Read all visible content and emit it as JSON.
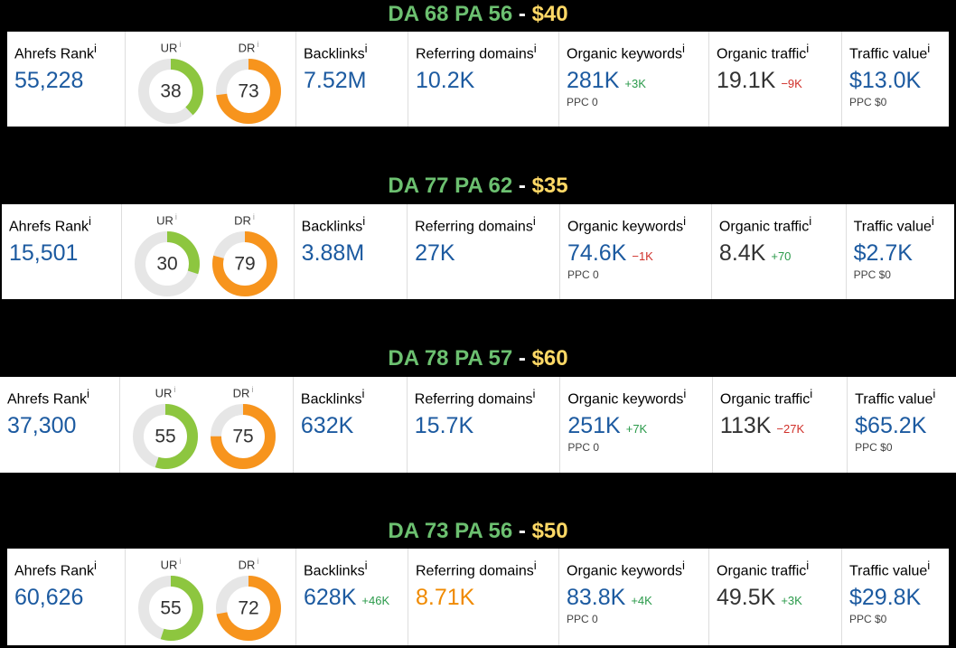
{
  "labels": {
    "ahrefs_rank": "Ahrefs Rank",
    "ur": "UR",
    "dr": "DR",
    "backlinks": "Backlinks",
    "referring_domains": "Referring domains",
    "organic_keywords": "Organic keywords",
    "organic_traffic": "Organic traffic",
    "traffic_value": "Traffic value",
    "info": "i"
  },
  "colors": {
    "value": "#1c5aa0",
    "traffic": "#333333",
    "highlight": "#f08a00",
    "up": "#2a9a4a",
    "down": "#d0302a",
    "ur": "#8dc63f",
    "dr": "#f7941d",
    "track": "#e6e6e6",
    "da_pa": "#6cc070",
    "price": "#ffd966",
    "separator": "#ffffff"
  },
  "panels": [
    {
      "heading": {
        "da_pa": "DA 68 PA 56",
        "separator": "-",
        "price": "$40"
      },
      "ahrefs_rank": "55,228",
      "ur": 38,
      "dr": 73,
      "backlinks": {
        "value": "7.52M"
      },
      "referring_domains": {
        "value": "10.2K"
      },
      "organic_keywords": {
        "value": "281K",
        "delta": "+3K",
        "ppc": "PPC 0"
      },
      "organic_traffic": {
        "value": "19.1K",
        "delta": "−9K"
      },
      "traffic_value": {
        "value": "$13.0K",
        "ppc": "PPC $0"
      }
    },
    {
      "heading": {
        "da_pa": "DA 77 PA 62",
        "separator": "-",
        "price": "$35"
      },
      "ahrefs_rank": "15,501",
      "ur": 30,
      "dr": 79,
      "backlinks": {
        "value": "3.88M"
      },
      "referring_domains": {
        "value": "27K"
      },
      "organic_keywords": {
        "value": "74.6K",
        "delta": "−1K",
        "ppc": "PPC 0"
      },
      "organic_traffic": {
        "value": "8.4K",
        "delta": "+70"
      },
      "traffic_value": {
        "value": "$2.7K",
        "ppc": "PPC $0"
      }
    },
    {
      "heading": {
        "da_pa": "DA 78 PA 57",
        "separator": "-",
        "price": "$60"
      },
      "ahrefs_rank": "37,300",
      "ur": 55,
      "dr": 75,
      "backlinks": {
        "value": "632K"
      },
      "referring_domains": {
        "value": "15.7K"
      },
      "organic_keywords": {
        "value": "251K",
        "delta": "+7K",
        "ppc": "PPC 0"
      },
      "organic_traffic": {
        "value": "113K",
        "delta": "−27K"
      },
      "traffic_value": {
        "value": "$65.2K",
        "ppc": "PPC $0"
      }
    },
    {
      "heading": {
        "da_pa": "DA 73 PA 56",
        "separator": "-",
        "price": "$50"
      },
      "ahrefs_rank": "60,626",
      "ur": 55,
      "dr": 72,
      "backlinks": {
        "value": "628K",
        "delta": "+46K"
      },
      "referring_domains": {
        "value": "8.71K",
        "highlight": true
      },
      "organic_keywords": {
        "value": "83.8K",
        "delta": "+4K",
        "ppc": "PPC 0"
      },
      "organic_traffic": {
        "value": "49.5K",
        "delta": "+3K"
      },
      "traffic_value": {
        "value": "$29.8K",
        "ppc": "PPC $0"
      }
    }
  ]
}
